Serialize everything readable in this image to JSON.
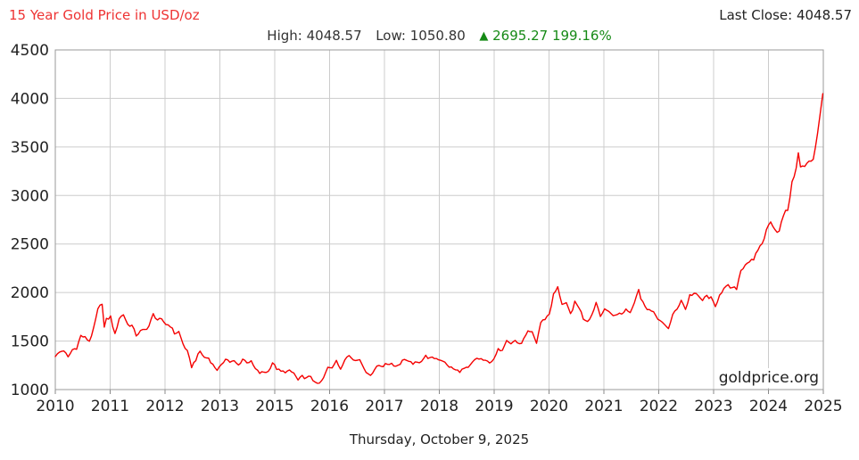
{
  "header": {
    "title": "15 Year Gold Price in USD/oz",
    "high_label": "High:",
    "high_value": "4048.57",
    "low_label": "Low:",
    "low_value": "1050.80",
    "change_arrow": "▲",
    "change_value": "2695.27",
    "change_percent": "199.16%",
    "last_close_label": "Last Close:",
    "last_close_value": "4048.57"
  },
  "watermark": "goldprice.org",
  "footer": {
    "date": "Thursday, October 9, 2025"
  },
  "colors": {
    "title_red": "#ee3333",
    "line_red": "#f50000",
    "change_green": "#168a16",
    "grid": "#cccccc",
    "plot_border": "#999999",
    "tick": "#888888",
    "axis_text": "#222222"
  },
  "chart_data": {
    "type": "line",
    "title": "15 Year Gold Price in USD/oz",
    "xlabel": "",
    "ylabel": "",
    "grid": true,
    "legend_position": "none",
    "ylim": [
      1000,
      4500
    ],
    "xlim": [
      2010.75,
      2025.78
    ],
    "y_ticks": [
      1000,
      1500,
      2000,
      2500,
      3000,
      3500,
      4000,
      4500
    ],
    "x_tick_labels": [
      "2010",
      "2011",
      "2012",
      "2013",
      "2015",
      "2016",
      "2017",
      "2018",
      "2019",
      "2020",
      "2021",
      "2022",
      "2023",
      "2024",
      "2025"
    ],
    "high": 4048.57,
    "low": 1050.8,
    "change": 2695.27,
    "change_pct": 199.16,
    "last_close": 4048.57,
    "series": [
      {
        "name": "Gold Price USD/oz",
        "points": [
          [
            2010.75,
            1340
          ],
          [
            2010.833,
            1385
          ],
          [
            2010.917,
            1405
          ],
          [
            2011.0,
            1330
          ],
          [
            2011.083,
            1410
          ],
          [
            2011.167,
            1430
          ],
          [
            2011.25,
            1555
          ],
          [
            2011.333,
            1535
          ],
          [
            2011.417,
            1500
          ],
          [
            2011.5,
            1625
          ],
          [
            2011.583,
            1820
          ],
          [
            2011.667,
            1895
          ],
          [
            2011.708,
            1640
          ],
          [
            2011.75,
            1720
          ],
          [
            2011.833,
            1750
          ],
          [
            2011.917,
            1565
          ],
          [
            2012.0,
            1735
          ],
          [
            2012.083,
            1775
          ],
          [
            2012.167,
            1670
          ],
          [
            2012.25,
            1660
          ],
          [
            2012.333,
            1560
          ],
          [
            2012.417,
            1600
          ],
          [
            2012.5,
            1615
          ],
          [
            2012.583,
            1655
          ],
          [
            2012.667,
            1775
          ],
          [
            2012.75,
            1720
          ],
          [
            2012.833,
            1715
          ],
          [
            2012.917,
            1675
          ],
          [
            2013.0,
            1660
          ],
          [
            2013.083,
            1580
          ],
          [
            2013.167,
            1595
          ],
          [
            2013.25,
            1470
          ],
          [
            2013.333,
            1390
          ],
          [
            2013.417,
            1235
          ],
          [
            2013.5,
            1310
          ],
          [
            2013.583,
            1395
          ],
          [
            2013.667,
            1330
          ],
          [
            2013.75,
            1325
          ],
          [
            2013.833,
            1255
          ],
          [
            2013.917,
            1205
          ],
          [
            2014.0,
            1245
          ],
          [
            2014.083,
            1325
          ],
          [
            2014.167,
            1285
          ],
          [
            2014.25,
            1290
          ],
          [
            2014.333,
            1250
          ],
          [
            2014.417,
            1315
          ],
          [
            2014.5,
            1285
          ],
          [
            2014.583,
            1285
          ],
          [
            2014.667,
            1210
          ],
          [
            2014.75,
            1170
          ],
          [
            2014.833,
            1180
          ],
          [
            2014.917,
            1185
          ],
          [
            2015.0,
            1280
          ],
          [
            2015.083,
            1215
          ],
          [
            2015.167,
            1185
          ],
          [
            2015.25,
            1185
          ],
          [
            2015.333,
            1190
          ],
          [
            2015.417,
            1170
          ],
          [
            2015.5,
            1095
          ],
          [
            2015.583,
            1135
          ],
          [
            2015.667,
            1115
          ],
          [
            2015.75,
            1140
          ],
          [
            2015.833,
            1065
          ],
          [
            2015.917,
            1060
          ],
          [
            2016.0,
            1115
          ],
          [
            2016.083,
            1235
          ],
          [
            2016.167,
            1235
          ],
          [
            2016.25,
            1290
          ],
          [
            2016.333,
            1215
          ],
          [
            2016.417,
            1320
          ],
          [
            2016.5,
            1350
          ],
          [
            2016.583,
            1310
          ],
          [
            2016.667,
            1315
          ],
          [
            2016.75,
            1275
          ],
          [
            2016.833,
            1175
          ],
          [
            2016.917,
            1150
          ],
          [
            2017.0,
            1210
          ],
          [
            2017.083,
            1250
          ],
          [
            2017.167,
            1245
          ],
          [
            2017.25,
            1265
          ],
          [
            2017.333,
            1270
          ],
          [
            2017.417,
            1240
          ],
          [
            2017.5,
            1270
          ],
          [
            2017.583,
            1320
          ],
          [
            2017.667,
            1280
          ],
          [
            2017.75,
            1270
          ],
          [
            2017.833,
            1275
          ],
          [
            2017.917,
            1300
          ],
          [
            2018.0,
            1345
          ],
          [
            2018.083,
            1320
          ],
          [
            2018.167,
            1325
          ],
          [
            2018.25,
            1315
          ],
          [
            2018.333,
            1300
          ],
          [
            2018.417,
            1250
          ],
          [
            2018.5,
            1225
          ],
          [
            2018.583,
            1200
          ],
          [
            2018.667,
            1190
          ],
          [
            2018.75,
            1215
          ],
          [
            2018.833,
            1220
          ],
          [
            2018.917,
            1280
          ],
          [
            2019.0,
            1320
          ],
          [
            2019.083,
            1315
          ],
          [
            2019.167,
            1290
          ],
          [
            2019.25,
            1285
          ],
          [
            2019.333,
            1305
          ],
          [
            2019.417,
            1410
          ],
          [
            2019.5,
            1415
          ],
          [
            2019.583,
            1520
          ],
          [
            2019.667,
            1470
          ],
          [
            2019.75,
            1510
          ],
          [
            2019.833,
            1460
          ],
          [
            2019.917,
            1515
          ],
          [
            2020.0,
            1590
          ],
          [
            2020.083,
            1585
          ],
          [
            2020.167,
            1480
          ],
          [
            2020.25,
            1690
          ],
          [
            2020.333,
            1730
          ],
          [
            2020.417,
            1780
          ],
          [
            2020.5,
            1975
          ],
          [
            2020.583,
            2050
          ],
          [
            2020.667,
            1885
          ],
          [
            2020.75,
            1880
          ],
          [
            2020.833,
            1775
          ],
          [
            2020.917,
            1895
          ],
          [
            2021.0,
            1850
          ],
          [
            2021.083,
            1735
          ],
          [
            2021.167,
            1710
          ],
          [
            2021.25,
            1770
          ],
          [
            2021.333,
            1900
          ],
          [
            2021.417,
            1770
          ],
          [
            2021.5,
            1815
          ],
          [
            2021.583,
            1815
          ],
          [
            2021.667,
            1755
          ],
          [
            2021.75,
            1785
          ],
          [
            2021.833,
            1775
          ],
          [
            2021.917,
            1830
          ],
          [
            2022.0,
            1795
          ],
          [
            2022.083,
            1910
          ],
          [
            2022.167,
            2040
          ],
          [
            2022.208,
            1935
          ],
          [
            2022.25,
            1895
          ],
          [
            2022.333,
            1840
          ],
          [
            2022.417,
            1805
          ],
          [
            2022.5,
            1765
          ],
          [
            2022.583,
            1710
          ],
          [
            2022.667,
            1660
          ],
          [
            2022.75,
            1635
          ],
          [
            2022.833,
            1770
          ],
          [
            2022.917,
            1825
          ],
          [
            2023.0,
            1930
          ],
          [
            2023.083,
            1825
          ],
          [
            2023.167,
            1970
          ],
          [
            2023.25,
            1990
          ],
          [
            2023.333,
            1960
          ],
          [
            2023.417,
            1920
          ],
          [
            2023.5,
            1965
          ],
          [
            2023.583,
            1940
          ],
          [
            2023.667,
            1850
          ],
          [
            2023.75,
            1985
          ],
          [
            2023.833,
            2035
          ],
          [
            2023.917,
            2065
          ],
          [
            2024.0,
            2040
          ],
          [
            2024.083,
            2045
          ],
          [
            2024.167,
            2230
          ],
          [
            2024.25,
            2290
          ],
          [
            2024.333,
            2325
          ],
          [
            2024.417,
            2325
          ],
          [
            2024.5,
            2445
          ],
          [
            2024.583,
            2505
          ],
          [
            2024.667,
            2635
          ],
          [
            2024.75,
            2745
          ],
          [
            2024.833,
            2650
          ],
          [
            2024.917,
            2625
          ],
          [
            2025.0,
            2800
          ],
          [
            2025.083,
            2855
          ],
          [
            2025.167,
            3120
          ],
          [
            2025.25,
            3300
          ],
          [
            2025.292,
            3430
          ],
          [
            2025.333,
            3290
          ],
          [
            2025.417,
            3300
          ],
          [
            2025.5,
            3340
          ],
          [
            2025.583,
            3380
          ],
          [
            2025.667,
            3640
          ],
          [
            2025.72,
            3860
          ],
          [
            2025.77,
            4048.57
          ]
        ]
      }
    ]
  }
}
